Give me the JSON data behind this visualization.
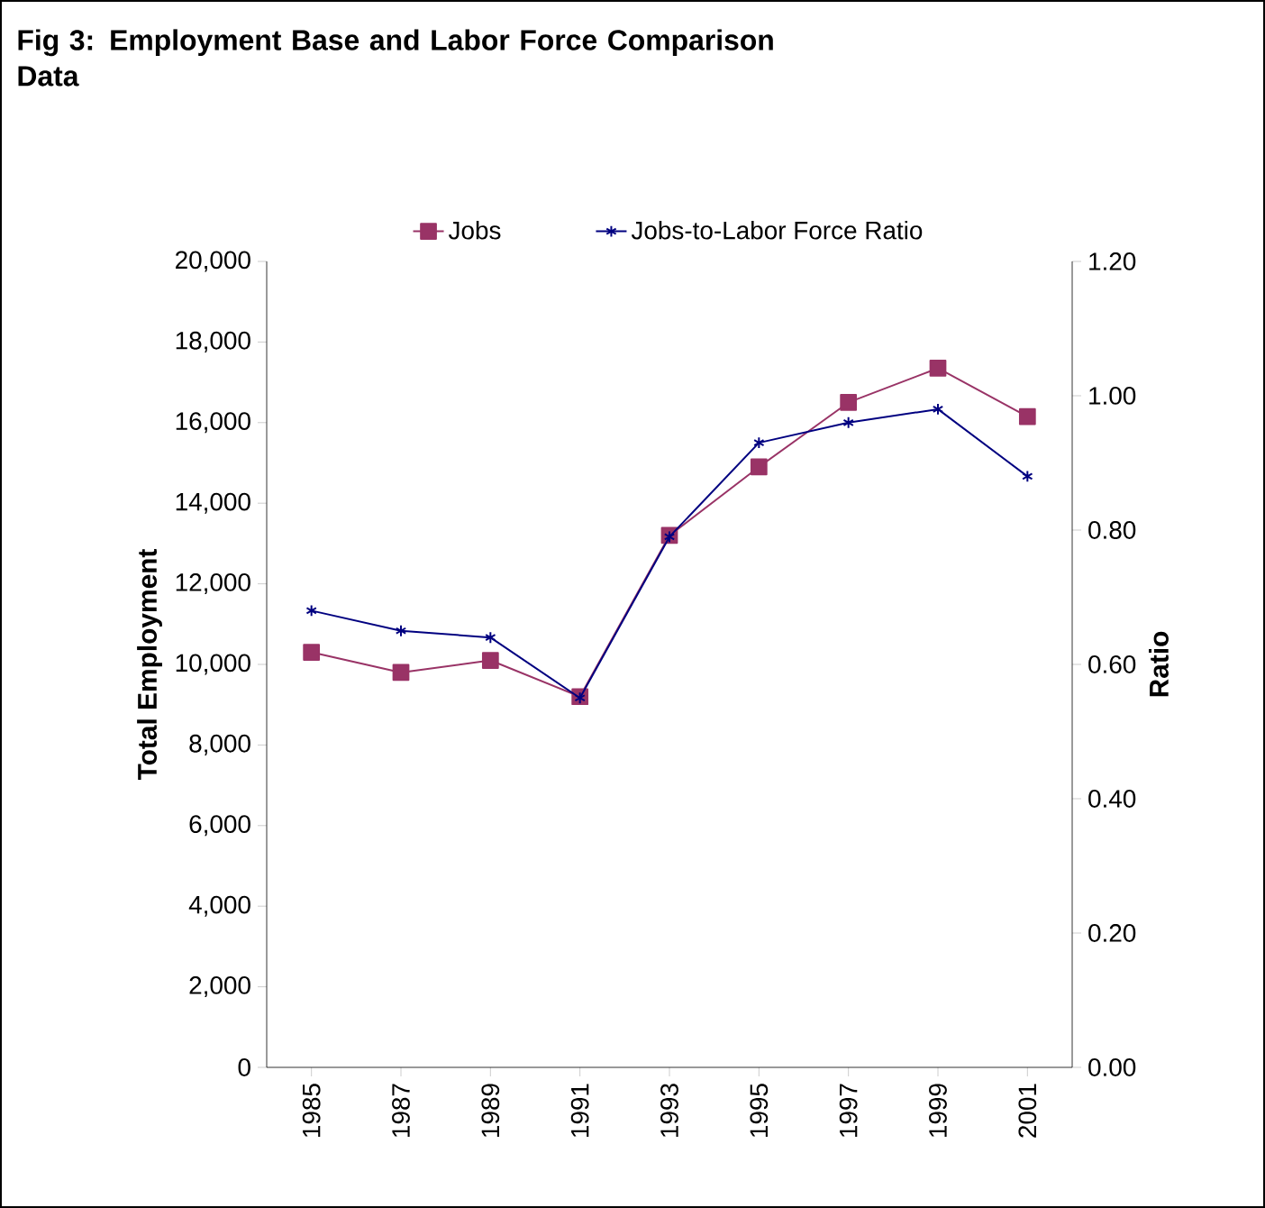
{
  "chart_data": {
    "type": "line",
    "title": "Fig 3: Employment Base and Labor Force Comparison Data",
    "categories": [
      "1985",
      "1987",
      "1989",
      "1991",
      "1993",
      "1995",
      "1997",
      "1999",
      "2001"
    ],
    "series": [
      {
        "name": "Jobs",
        "color": "#993366",
        "marker": "square",
        "values": [
          10300,
          9800,
          10100,
          9200,
          13200,
          14900,
          16500,
          17350,
          16150
        ]
      },
      {
        "name": "Jobs-to-Labor Force Ratio",
        "color": "#000080",
        "marker": "cross",
        "axis": "y2",
        "values": [
          0.68,
          0.65,
          0.64,
          0.55,
          0.79,
          0.93,
          0.96,
          0.98,
          0.88
        ]
      }
    ],
    "ylabel": "Total Employment",
    "y2label": "Ratio",
    "ylim": [
      0,
      20000
    ],
    "yticks": [
      0,
      {
        "value": 2000,
        "label": "2,000"
      },
      {
        "value": 4000,
        "label": "4,000"
      },
      {
        "value": 6000,
        "label": "6,000"
      },
      {
        "value": 8000,
        "label": "8,000"
      },
      {
        "value": 10000,
        "label": "10,000"
      },
      {
        "value": 12000,
        "label": "12,000"
      },
      {
        "value": 14000,
        "label": "14,000"
      },
      {
        "value": 16000,
        "label": "16,000"
      },
      {
        "value": 18000,
        "label": "18,000"
      },
      {
        "value": 20000,
        "label": "20,000"
      }
    ],
    "y2lim": [
      0,
      1.2
    ],
    "y2ticks": [
      {
        "value": 0,
        "label": "0.00"
      },
      {
        "value": 0.2,
        "label": "0.20"
      },
      {
        "value": 0.4,
        "label": "0.40"
      },
      {
        "value": 0.6,
        "label": "0.60"
      },
      {
        "value": 0.8,
        "label": "0.80"
      },
      {
        "value": 1.0,
        "label": "1.00"
      },
      {
        "value": 1.2,
        "label": "1.20"
      }
    ],
    "legend": "top",
    "line_style": "solid"
  }
}
